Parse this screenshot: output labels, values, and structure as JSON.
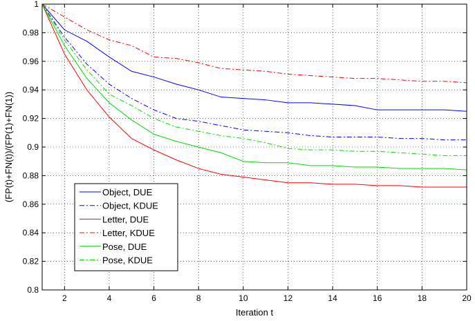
{
  "chart_data": {
    "type": "line",
    "title": "",
    "xlabel": "Iteration t",
    "ylabel": "(FP(t)+FN(t))/(FP(1)+FN(1))",
    "xlim": [
      1,
      20
    ],
    "ylim": [
      0.8,
      1.0
    ],
    "xticks": [
      "2",
      "4",
      "6",
      "8",
      "10",
      "12",
      "14",
      "16",
      "18",
      "20"
    ],
    "yticks": [
      "0.8",
      "0.82",
      "0.84",
      "0.86",
      "0.88",
      "0.9",
      "0.92",
      "0.94",
      "0.96",
      "0.98",
      "1"
    ],
    "grid": "on",
    "legend_position": "lower-left",
    "x": [
      1,
      2,
      3,
      4,
      5,
      6,
      7,
      8,
      9,
      10,
      11,
      12,
      13,
      14,
      15,
      16,
      17,
      18,
      19,
      20
    ],
    "series": [
      {
        "name": "Object, DUE",
        "color": "#0000ff",
        "dash": "solid",
        "values": [
          1.0,
          0.982,
          0.974,
          0.963,
          0.953,
          0.949,
          0.944,
          0.94,
          0.935,
          0.934,
          0.933,
          0.931,
          0.931,
          0.93,
          0.929,
          0.926,
          0.926,
          0.926,
          0.926,
          0.925
        ]
      },
      {
        "name": "Object, KDUE",
        "color": "#0000ff",
        "dash": "dashdot",
        "values": [
          1.0,
          0.977,
          0.958,
          0.944,
          0.934,
          0.926,
          0.92,
          0.918,
          0.915,
          0.912,
          0.911,
          0.91,
          0.908,
          0.907,
          0.907,
          0.907,
          0.906,
          0.906,
          0.905,
          0.905
        ]
      },
      {
        "name": "Letter, DUE",
        "color": "#ff0000",
        "dash": "solid",
        "values": [
          1.0,
          0.965,
          0.94,
          0.921,
          0.906,
          0.898,
          0.891,
          0.885,
          0.881,
          0.879,
          0.877,
          0.875,
          0.875,
          0.874,
          0.874,
          0.873,
          0.873,
          0.872,
          0.872,
          0.872
        ]
      },
      {
        "name": "Letter, KDUE",
        "color": "#ff0000",
        "dash": "dashdot",
        "values": [
          1.0,
          0.991,
          0.982,
          0.975,
          0.971,
          0.963,
          0.962,
          0.959,
          0.955,
          0.954,
          0.953,
          0.951,
          0.95,
          0.949,
          0.948,
          0.948,
          0.947,
          0.946,
          0.946,
          0.945
        ]
      },
      {
        "name": "Pose, DUE",
        "color": "#00dd00",
        "dash": "solid",
        "values": [
          1.0,
          0.971,
          0.948,
          0.931,
          0.919,
          0.909,
          0.904,
          0.9,
          0.896,
          0.89,
          0.889,
          0.889,
          0.887,
          0.887,
          0.886,
          0.886,
          0.885,
          0.885,
          0.885,
          0.884
        ]
      },
      {
        "name": "Pose, KDUE",
        "color": "#00dd00",
        "dash": "dashdot",
        "values": [
          1.0,
          0.975,
          0.954,
          0.937,
          0.929,
          0.92,
          0.914,
          0.911,
          0.908,
          0.906,
          0.903,
          0.899,
          0.898,
          0.898,
          0.897,
          0.897,
          0.896,
          0.895,
          0.894,
          0.894
        ]
      }
    ]
  }
}
